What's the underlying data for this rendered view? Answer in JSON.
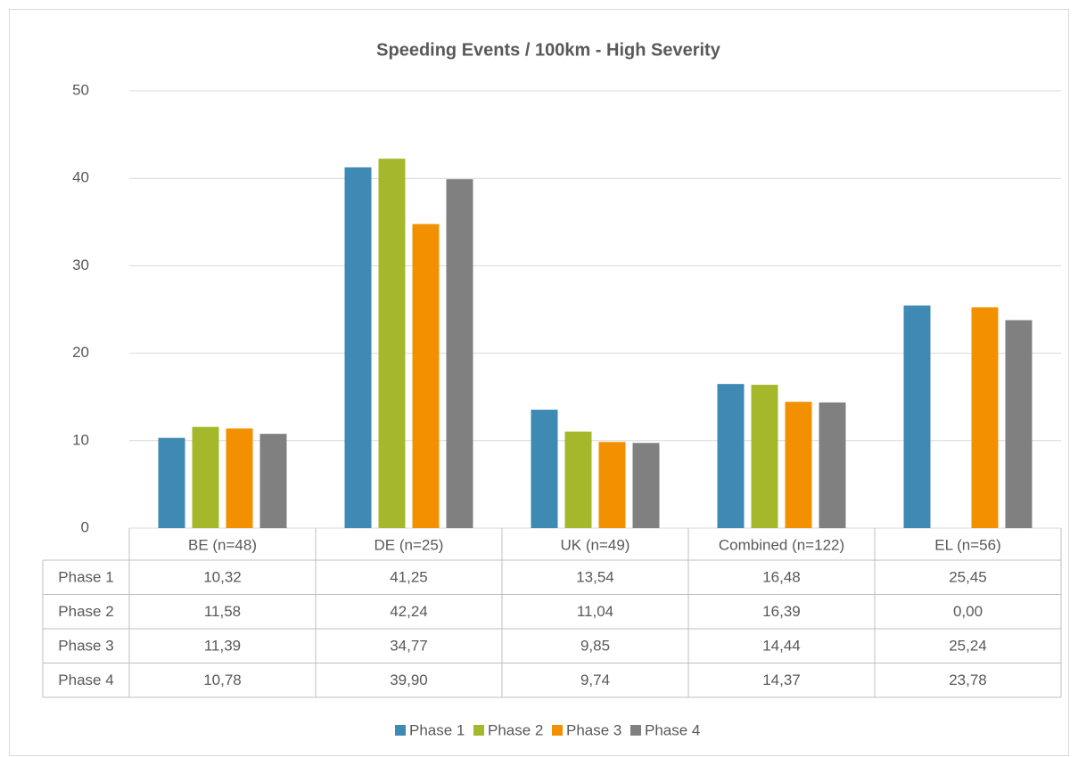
{
  "chart_data": {
    "type": "bar",
    "title": "Speeding Events / 100km - High Severity",
    "categories": [
      "BE (n=48)",
      "DE (n=25)",
      "UK (n=49)",
      "Combined (n=122)",
      "EL (n=56)"
    ],
    "series": [
      {
        "name": "Phase 1",
        "color": "#3f89b5",
        "values": [
          10.32,
          41.25,
          13.54,
          16.48,
          25.45
        ],
        "value_labels": [
          "10,32",
          "41,25",
          "13,54",
          "16,48",
          "25,45"
        ]
      },
      {
        "name": "Phase 2",
        "color": "#a5b82c",
        "values": [
          11.58,
          42.24,
          11.04,
          16.39,
          0.0
        ],
        "value_labels": [
          "11,58",
          "42,24",
          "11,04",
          "16,39",
          "0,00"
        ]
      },
      {
        "name": "Phase 3",
        "color": "#f39000",
        "values": [
          11.39,
          34.77,
          9.85,
          14.44,
          25.24
        ],
        "value_labels": [
          "11,39",
          "34,77",
          "9,85",
          "14,44",
          "25,24"
        ]
      },
      {
        "name": "Phase 4",
        "color": "#808080",
        "values": [
          10.78,
          39.9,
          9.74,
          14.37,
          23.78
        ],
        "value_labels": [
          "10,78",
          "39,90",
          "9,74",
          "14,37",
          "23,78"
        ]
      }
    ],
    "ylim": [
      0,
      50
    ],
    "yticks": [
      0,
      10,
      20,
      30,
      40,
      50
    ],
    "grid": true,
    "legend": "bottom"
  }
}
